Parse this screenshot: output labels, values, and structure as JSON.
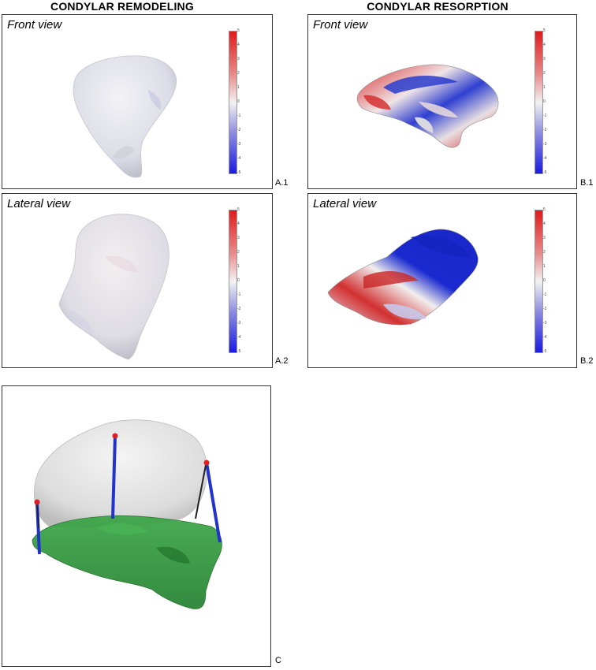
{
  "headings": {
    "left": "CONDYLAR REMODELING",
    "right": "CONDYLAR RESORPTION"
  },
  "panels": {
    "a1": {
      "view": "Front view",
      "id": "A.1"
    },
    "a2": {
      "view": "Lateral view",
      "id": "A.2"
    },
    "b1": {
      "view": "Front view",
      "id": "B.1"
    },
    "b2": {
      "view": "Lateral view",
      "id": "B.2"
    },
    "c": {
      "id": "C"
    }
  },
  "colorbar": {
    "ticks": [
      "5",
      "4",
      "3",
      "2",
      "1",
      "0",
      "-1",
      "-2",
      "-3",
      "-4",
      "-5"
    ],
    "colors": {
      "max": "#e01b1b",
      "mid": "#f2f2f2",
      "min": "#1b1be0"
    }
  },
  "colors": {
    "bone": "#e6e6ea",
    "overlay": "#2f9a3a",
    "landmark": "#e02020",
    "measure_line": "#2233cc"
  }
}
